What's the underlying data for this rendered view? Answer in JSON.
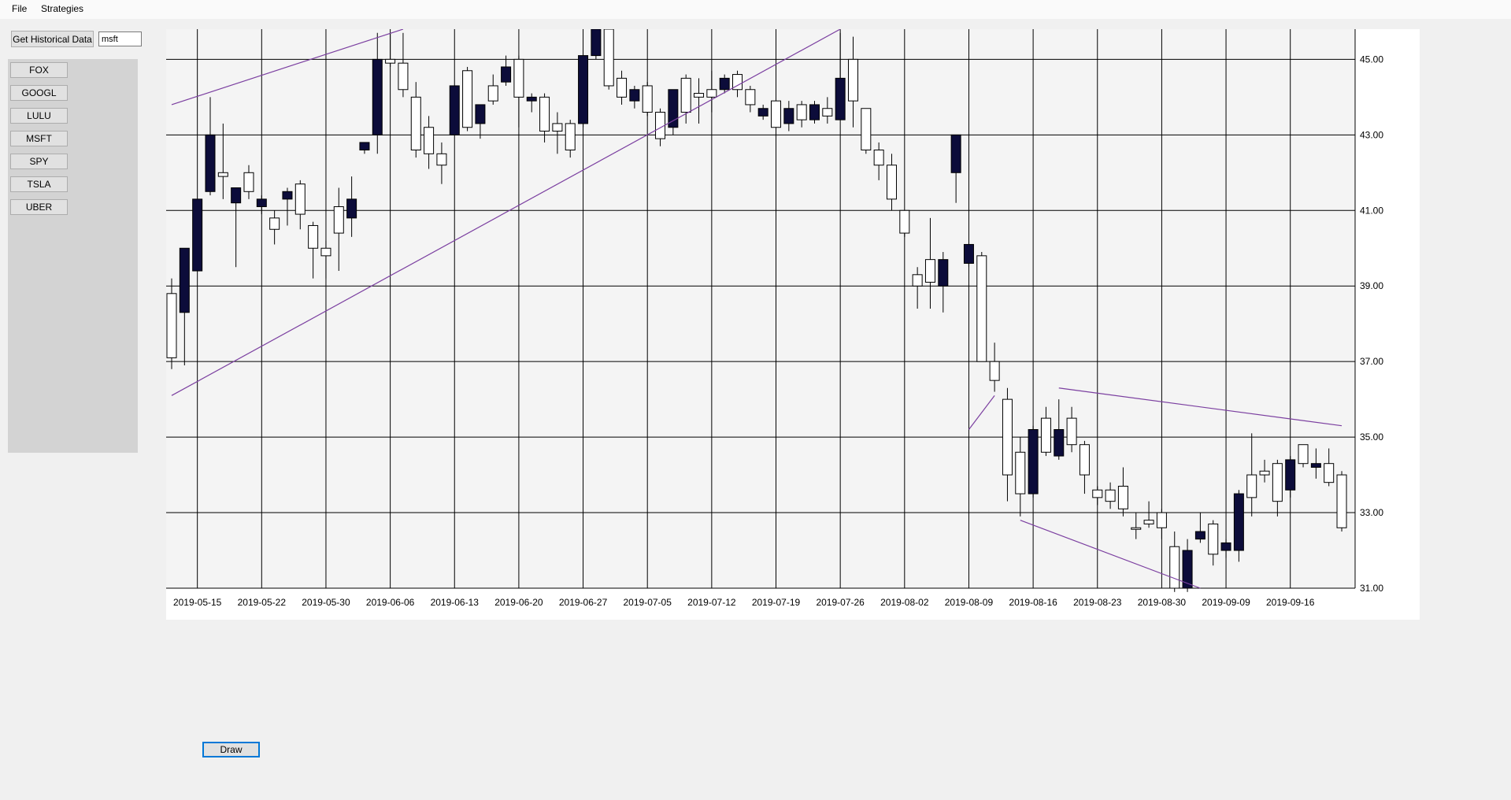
{
  "menu": {
    "file": "File",
    "strategies": "Strategies"
  },
  "toolbar": {
    "get_historical_label": "Get Historical Data",
    "symbol_value": "msft"
  },
  "symbols": [
    "FOX",
    "GOOGL",
    "LULU",
    "MSFT",
    "SPY",
    "TSLA",
    "UBER"
  ],
  "draw_button": "Draw",
  "colors": {
    "bear_fill": "#0c0c3a",
    "bull_fill": "#ffffff",
    "trendline": "#7b3fa0",
    "plot_bg": "#f4f4f4",
    "grid": "#000000"
  },
  "chart_data": {
    "type": "candlestick",
    "x_tick_labels": [
      "2019-05-15",
      "2019-05-22",
      "2019-05-30",
      "2019-06-06",
      "2019-06-13",
      "2019-06-20",
      "2019-06-27",
      "2019-07-05",
      "2019-07-12",
      "2019-07-19",
      "2019-07-26",
      "2019-08-02",
      "2019-08-09",
      "2019-08-16",
      "2019-08-23",
      "2019-08-30",
      "2019-09-09",
      "2019-09-16"
    ],
    "y_tick_labels": [
      "45.00",
      "43.00",
      "41.00",
      "39.00",
      "37.00",
      "35.00",
      "33.00",
      "31.00"
    ],
    "ylim": [
      31.0,
      45.8
    ],
    "grid": true,
    "candles": [
      {
        "date": "2019-05-13",
        "open": 37.1,
        "close": 38.8,
        "high": 39.2,
        "low": 36.8
      },
      {
        "date": "2019-05-14",
        "open": 40.0,
        "close": 38.3,
        "high": 40.0,
        "low": 36.9
      },
      {
        "date": "2019-05-15",
        "open": 41.3,
        "close": 39.4,
        "high": 41.3,
        "low": 39.4
      },
      {
        "date": "2019-05-16",
        "open": 43.0,
        "close": 41.5,
        "high": 44.0,
        "low": 41.4
      },
      {
        "date": "2019-05-17",
        "open": 41.9,
        "close": 42.0,
        "high": 43.3,
        "low": 41.3
      },
      {
        "date": "2019-05-20",
        "open": 41.6,
        "close": 41.2,
        "high": 41.6,
        "low": 39.5
      },
      {
        "date": "2019-05-21",
        "open": 41.5,
        "close": 42.0,
        "high": 42.2,
        "low": 41.3
      },
      {
        "date": "2019-05-22",
        "open": 41.3,
        "close": 41.1,
        "high": 41.4,
        "low": 40.9
      },
      {
        "date": "2019-05-23",
        "open": 40.5,
        "close": 40.8,
        "high": 41.0,
        "low": 40.1
      },
      {
        "date": "2019-05-24",
        "open": 41.5,
        "close": 41.3,
        "high": 41.6,
        "low": 40.6
      },
      {
        "date": "2019-05-28",
        "open": 40.9,
        "close": 41.7,
        "high": 41.8,
        "low": 40.5
      },
      {
        "date": "2019-05-29",
        "open": 40.0,
        "close": 40.6,
        "high": 40.7,
        "low": 39.2
      },
      {
        "date": "2019-05-30",
        "open": 39.8,
        "close": 40.0,
        "high": 40.2,
        "low": 39.2
      },
      {
        "date": "2019-05-31",
        "open": 40.4,
        "close": 41.1,
        "high": 41.6,
        "low": 39.4
      },
      {
        "date": "2019-06-03",
        "open": 41.3,
        "close": 40.8,
        "high": 41.9,
        "low": 40.3
      },
      {
        "date": "2019-06-04",
        "open": 42.8,
        "close": 42.6,
        "high": 42.8,
        "low": 42.5
      },
      {
        "date": "2019-06-05",
        "open": 45.0,
        "close": 43.0,
        "high": 45.7,
        "low": 42.5
      },
      {
        "date": "2019-06-06",
        "open": 44.9,
        "close": 45.0,
        "high": 45.7,
        "low": 44.8
      },
      {
        "date": "2019-06-07",
        "open": 44.2,
        "close": 44.9,
        "high": 45.7,
        "low": 44.0
      },
      {
        "date": "2019-06-10",
        "open": 42.6,
        "close": 44.0,
        "high": 44.4,
        "low": 42.4
      },
      {
        "date": "2019-06-11",
        "open": 42.5,
        "close": 43.2,
        "high": 43.5,
        "low": 42.1
      },
      {
        "date": "2019-06-12",
        "open": 42.2,
        "close": 42.5,
        "high": 42.8,
        "low": 41.7
      },
      {
        "date": "2019-06-13",
        "open": 44.3,
        "close": 43.0,
        "high": 44.3,
        "low": 43.0
      },
      {
        "date": "2019-06-14",
        "open": 43.2,
        "close": 44.7,
        "high": 44.8,
        "low": 43.1
      },
      {
        "date": "2019-06-17",
        "open": 43.8,
        "close": 43.3,
        "high": 43.8,
        "low": 42.9
      },
      {
        "date": "2019-06-18",
        "open": 43.9,
        "close": 44.3,
        "high": 44.6,
        "low": 43.8
      },
      {
        "date": "2019-06-19",
        "open": 44.8,
        "close": 44.4,
        "high": 45.1,
        "low": 44.3
      },
      {
        "date": "2019-06-20",
        "open": 44.0,
        "close": 45.0,
        "high": 45.1,
        "low": 43.2
      },
      {
        "date": "2019-06-21",
        "open": 44.0,
        "close": 43.9,
        "high": 44.1,
        "low": 43.6
      },
      {
        "date": "2019-06-24",
        "open": 43.1,
        "close": 44.0,
        "high": 44.1,
        "low": 42.8
      },
      {
        "date": "2019-06-25",
        "open": 43.1,
        "close": 43.3,
        "high": 43.6,
        "low": 42.5
      },
      {
        "date": "2019-06-26",
        "open": 42.6,
        "close": 43.3,
        "high": 43.4,
        "low": 42.4
      },
      {
        "date": "2019-06-27",
        "open": 45.1,
        "close": 43.3,
        "high": 45.1,
        "low": 43.2
      },
      {
        "date": "2019-06-28",
        "open": 45.8,
        "close": 45.1,
        "high": 45.8,
        "low": 45.0
      },
      {
        "date": "2019-07-01",
        "open": 44.3,
        "close": 45.8,
        "high": 45.8,
        "low": 44.2
      },
      {
        "date": "2019-07-02",
        "open": 44.0,
        "close": 44.5,
        "high": 44.7,
        "low": 43.8
      },
      {
        "date": "2019-07-03",
        "open": 44.2,
        "close": 43.9,
        "high": 44.3,
        "low": 43.7
      },
      {
        "date": "2019-07-05",
        "open": 43.6,
        "close": 44.3,
        "high": 44.4,
        "low": 43.5
      },
      {
        "date": "2019-07-08",
        "open": 42.9,
        "close": 43.6,
        "high": 43.7,
        "low": 42.7
      },
      {
        "date": "2019-07-09",
        "open": 44.2,
        "close": 43.2,
        "high": 44.2,
        "low": 43.0
      },
      {
        "date": "2019-07-10",
        "open": 43.6,
        "close": 44.5,
        "high": 44.6,
        "low": 43.3
      },
      {
        "date": "2019-07-11",
        "open": 44.0,
        "close": 44.1,
        "high": 44.5,
        "low": 43.3
      },
      {
        "date": "2019-07-12",
        "open": 44.0,
        "close": 44.2,
        "high": 44.7,
        "low": 43.6
      },
      {
        "date": "2019-07-15",
        "open": 44.5,
        "close": 44.2,
        "high": 44.6,
        "low": 44.1
      },
      {
        "date": "2019-07-16",
        "open": 44.2,
        "close": 44.6,
        "high": 44.7,
        "low": 44.0
      },
      {
        "date": "2019-07-17",
        "open": 43.8,
        "close": 44.2,
        "high": 44.3,
        "low": 43.6
      },
      {
        "date": "2019-07-18",
        "open": 43.7,
        "close": 43.5,
        "high": 43.8,
        "low": 43.4
      },
      {
        "date": "2019-07-19",
        "open": 43.2,
        "close": 43.9,
        "high": 44.0,
        "low": 43.0
      },
      {
        "date": "2019-07-22",
        "open": 43.7,
        "close": 43.3,
        "high": 43.9,
        "low": 43.1
      },
      {
        "date": "2019-07-23",
        "open": 43.4,
        "close": 43.8,
        "high": 43.9,
        "low": 43.2
      },
      {
        "date": "2019-07-24",
        "open": 43.8,
        "close": 43.4,
        "high": 43.9,
        "low": 43.3
      },
      {
        "date": "2019-07-25",
        "open": 43.5,
        "close": 43.7,
        "high": 44.0,
        "low": 43.3
      },
      {
        "date": "2019-07-26",
        "open": 44.5,
        "close": 43.4,
        "high": 45.7,
        "low": 43.4
      },
      {
        "date": "2019-07-29",
        "open": 43.9,
        "close": 45.0,
        "high": 45.6,
        "low": 43.2
      },
      {
        "date": "2019-07-30",
        "open": 42.6,
        "close": 43.7,
        "high": 43.7,
        "low": 42.5
      },
      {
        "date": "2019-07-31",
        "open": 42.2,
        "close": 42.6,
        "high": 42.8,
        "low": 41.8
      },
      {
        "date": "2019-08-01",
        "open": 41.3,
        "close": 42.2,
        "high": 42.5,
        "low": 41.0
      },
      {
        "date": "2019-08-02",
        "open": 40.4,
        "close": 41.0,
        "high": 41.0,
        "low": 40.3
      },
      {
        "date": "2019-08-05",
        "open": 39.0,
        "close": 39.3,
        "high": 39.5,
        "low": 38.4
      },
      {
        "date": "2019-08-06",
        "open": 39.1,
        "close": 39.7,
        "high": 40.8,
        "low": 38.4
      },
      {
        "date": "2019-08-07",
        "open": 39.7,
        "close": 39.0,
        "high": 39.9,
        "low": 38.3
      },
      {
        "date": "2019-08-08",
        "open": 43.0,
        "close": 42.0,
        "high": 43.0,
        "low": 41.2
      },
      {
        "date": "2019-08-09",
        "open": 40.1,
        "close": 39.6,
        "high": 40.1,
        "low": 39.5
      },
      {
        "date": "2019-08-12",
        "open": 37.0,
        "close": 39.8,
        "high": 39.9,
        "low": 37.0
      },
      {
        "date": "2019-08-13",
        "open": 36.5,
        "close": 37.0,
        "high": 37.5,
        "low": 36.2
      },
      {
        "date": "2019-08-14",
        "open": 34.0,
        "close": 36.0,
        "high": 36.3,
        "low": 33.3
      },
      {
        "date": "2019-08-15",
        "open": 33.5,
        "close": 34.6,
        "high": 35.0,
        "low": 32.9
      },
      {
        "date": "2019-08-16",
        "open": 35.2,
        "close": 33.5,
        "high": 35.3,
        "low": 33.4
      },
      {
        "date": "2019-08-19",
        "open": 34.6,
        "close": 35.5,
        "high": 35.8,
        "low": 34.5
      },
      {
        "date": "2019-08-20",
        "open": 35.2,
        "close": 34.5,
        "high": 36.0,
        "low": 34.4
      },
      {
        "date": "2019-08-21",
        "open": 34.8,
        "close": 35.5,
        "high": 35.8,
        "low": 34.6
      },
      {
        "date": "2019-08-22",
        "open": 34.0,
        "close": 34.8,
        "high": 34.9,
        "low": 33.5
      },
      {
        "date": "2019-08-23",
        "open": 33.4,
        "close": 33.6,
        "high": 33.7,
        "low": 33.2
      },
      {
        "date": "2019-08-26",
        "open": 33.3,
        "close": 33.6,
        "high": 33.8,
        "low": 33.1
      },
      {
        "date": "2019-08-27",
        "open": 33.1,
        "close": 33.7,
        "high": 34.2,
        "low": 32.9
      },
      {
        "date": "2019-08-28",
        "open": 32.6,
        "close": 32.6,
        "high": 33.0,
        "low": 32.3
      },
      {
        "date": "2019-08-29",
        "open": 32.7,
        "close": 32.8,
        "high": 33.3,
        "low": 32.6
      },
      {
        "date": "2019-08-30",
        "open": 32.6,
        "close": 33.0,
        "high": 33.1,
        "low": 32.3
      },
      {
        "date": "2019-09-03",
        "open": 31.0,
        "close": 32.1,
        "high": 32.5,
        "low": 30.9
      },
      {
        "date": "2019-09-04",
        "open": 32.0,
        "close": 31.0,
        "high": 32.3,
        "low": 30.9
      },
      {
        "date": "2019-09-05",
        "open": 32.5,
        "close": 32.3,
        "high": 33.0,
        "low": 32.2
      },
      {
        "date": "2019-09-06",
        "open": 31.9,
        "close": 32.7,
        "high": 32.8,
        "low": 31.6
      },
      {
        "date": "2019-09-09",
        "open": 32.2,
        "close": 32.0,
        "high": 32.3,
        "low": 31.8
      },
      {
        "date": "2019-09-10",
        "open": 33.5,
        "close": 32.0,
        "high": 33.6,
        "low": 31.7
      },
      {
        "date": "2019-09-11",
        "open": 33.4,
        "close": 34.0,
        "high": 35.1,
        "low": 32.9
      },
      {
        "date": "2019-09-12",
        "open": 34.0,
        "close": 34.1,
        "high": 34.4,
        "low": 33.8
      },
      {
        "date": "2019-09-13",
        "open": 33.3,
        "close": 34.3,
        "high": 34.4,
        "low": 32.9
      },
      {
        "date": "2019-09-16",
        "open": 34.4,
        "close": 33.6,
        "high": 34.5,
        "low": 33.4
      },
      {
        "date": "2019-09-17",
        "open": 34.3,
        "close": 34.8,
        "high": 34.8,
        "low": 34.2
      },
      {
        "date": "2019-09-18",
        "open": 34.3,
        "close": 34.2,
        "high": 34.7,
        "low": 33.9
      },
      {
        "date": "2019-09-19",
        "open": 33.8,
        "close": 34.3,
        "high": 34.7,
        "low": 33.7
      },
      {
        "date": "2019-09-20",
        "open": 32.6,
        "close": 34.0,
        "high": 34.1,
        "low": 32.5
      }
    ],
    "trendlines": [
      {
        "x1": "2019-05-13",
        "y1": 43.8,
        "x2": "2019-06-07",
        "y2": 45.8
      },
      {
        "x1": "2019-05-13",
        "y1": 36.1,
        "x2": "2019-07-26",
        "y2": 45.8
      },
      {
        "x1": "2019-08-09",
        "y1": 35.2,
        "x2": "2019-08-13",
        "y2": 36.1
      },
      {
        "x1": "2019-08-20",
        "y1": 36.3,
        "x2": "2019-09-20",
        "y2": 35.3
      },
      {
        "x1": "2019-08-15",
        "y1": 32.8,
        "x2": "2019-09-05",
        "y2": 31.0
      }
    ]
  }
}
